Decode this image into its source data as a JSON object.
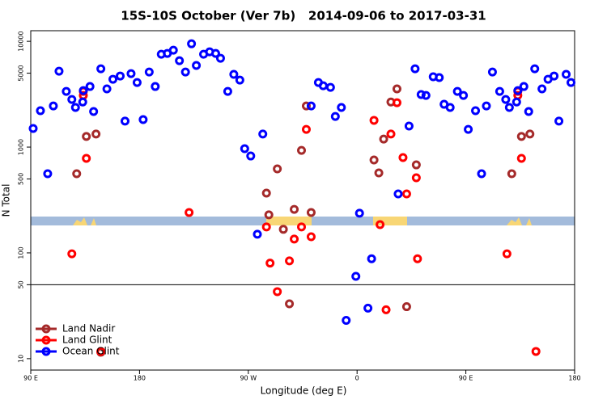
{
  "chart_data": {
    "type": "scatter",
    "title": "15S-10S October (Ver 7b)   2014-09-06 to 2017-03-31",
    "x_label": "Longitude (deg E)",
    "y_label": "N Total",
    "xlim": [
      90,
      540
    ],
    "xticks": [
      {
        "value": 90,
        "label": "90 E"
      },
      180,
      {
        "value": 270,
        "label": "90 W"
      },
      {
        "value": 360,
        "label": "0"
      },
      {
        "value": 450,
        "label": "90 E"
      },
      {
        "value": 540,
        "label": "180"
      }
    ],
    "ylim": [
      7.8,
      12600
    ],
    "log_y": true,
    "yticks": [
      10,
      50,
      100,
      500,
      1000,
      5000,
      10000
    ],
    "hline": 50,
    "legend": "lower left",
    "series": [
      {
        "name": "Land Nadir",
        "color": "#a52a2a",
        "x": [
          128,
          136,
          144,
          285,
          287,
          294,
          299,
          304,
          308,
          314,
          318,
          322,
          374,
          378,
          382,
          388,
          393,
          401,
          409,
          488,
          496,
          503,
          148
        ],
        "values": [
          560,
          1260,
          1330,
          367,
          229,
          622,
          167,
          33,
          258,
          931,
          2450,
          241,
          755,
          570,
          1190,
          2670,
          3550,
          31,
          679,
          560,
          1260,
          1330,
          11.5
        ]
      },
      {
        "name": "Land Glint",
        "color": "#ff0000",
        "x": [
          124,
          133.5,
          133.5,
          136,
          221,
          285,
          288,
          294,
          304,
          308,
          314,
          318,
          322,
          374,
          379,
          384,
          388,
          393,
          398,
          401,
          409,
          410,
          484,
          493,
          493,
          496,
          148,
          508
        ],
        "values": [
          98,
          3360,
          3080,
          782,
          241,
          176,
          80,
          43,
          84,
          135,
          176,
          1470,
          142,
          1790,
          185,
          29,
          1330,
          2630,
          796,
          361,
          513,
          88,
          98,
          3360,
          3080,
          782,
          11.7,
          11.7
        ]
      },
      {
        "name": "Ocean Glint",
        "color": "#0000ff",
        "x": [
          92,
          98,
          104,
          108.7,
          113.4,
          119.4,
          124,
          127,
          133,
          133.5,
          139,
          142,
          148,
          153,
          158,
          164,
          168,
          173,
          178,
          183,
          188,
          193,
          198,
          203,
          208,
          213,
          218,
          223,
          227,
          233,
          238,
          243,
          247,
          253,
          258,
          263,
          267,
          272,
          277.5,
          282,
          322,
          328,
          332,
          338,
          342,
          347,
          351,
          359,
          362,
          369,
          372,
          394,
          403,
          408,
          413,
          417,
          423,
          428,
          432,
          437,
          443,
          448,
          452,
          458,
          463,
          467,
          472,
          478,
          483,
          486,
          492,
          493,
          498,
          502,
          507,
          513,
          518,
          523,
          527,
          533,
          537
        ],
        "values": [
          1500,
          2210,
          560,
          2450,
          5220,
          3360,
          2820,
          2370,
          2670,
          3420,
          3740,
          2170,
          5500,
          3550,
          4380,
          4700,
          1760,
          4950,
          4080,
          1820,
          5130,
          3740,
          7550,
          7680,
          8240,
          6560,
          5130,
          9480,
          5910,
          7550,
          7960,
          7680,
          6920,
          3360,
          4870,
          4300,
          966,
          824,
          150,
          1330,
          2450,
          4080,
          3800,
          3670,
          1950,
          2370,
          23,
          60,
          237,
          30,
          88,
          361,
          1580,
          5500,
          3140,
          3080,
          4620,
          4540,
          2540,
          2370,
          3360,
          3080,
          1470,
          2210,
          560,
          2450,
          5130,
          3360,
          2820,
          2370,
          2670,
          3420,
          3740,
          2170,
          5500,
          3550,
          4380,
          4700,
          1760,
          4870,
          4080
        ]
      }
    ]
  }
}
